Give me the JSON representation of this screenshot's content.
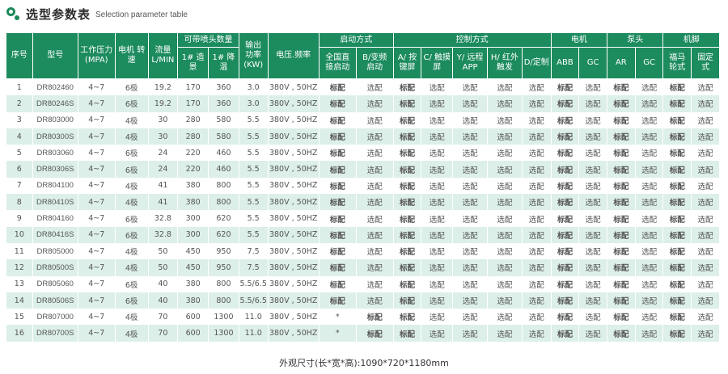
{
  "header": {
    "title_zh": "选型参数表",
    "title_en": "Selection parameter table"
  },
  "table": {
    "headers": {
      "seq": "序号",
      "model": "型号",
      "pressure": "工作压力 (MPA)",
      "motor_speed": "电机 转速",
      "flow": "流量 L/MIN",
      "nozzles": "可带喷头数量",
      "nozzle_normal": "1# 造景",
      "nozzle_cool": "1# 降温",
      "power": "输出 功率 (KW)",
      "voltage": "电压.频率",
      "start_mode": "启动方式",
      "start_a": "全国直 接启动",
      "start_b": "B/变频 启动",
      "control_mode": "控制方式",
      "ctrl_a": "A/ 按键屏",
      "ctrl_c": "C/ 触摸屏",
      "ctrl_y": "Y/ 远程APP",
      "ctrl_h": "H/ 红外触发",
      "ctrl_d": "D/定制",
      "motor": "电机",
      "motor_abb": "ABB",
      "motor_gc": "GC",
      "pump": "泵头",
      "pump_ar": "AR",
      "pump_gc": "GC",
      "base": "机脚",
      "base_fuma": "福马 轮式",
      "base_fixed": "固定 式"
    },
    "rows": [
      {
        "seq": "1",
        "model": "DR802460",
        "pressure": "4~7",
        "speed": "6极",
        "flow": "19.2",
        "n1": "170",
        "n2": "360",
        "power": "3.0",
        "volt": "380V , 50HZ",
        "sa": "标配",
        "sb": "选配",
        "ca": "标配",
        "cc": "选配",
        "cy": "选配",
        "ch": "选配",
        "cd": "选配",
        "ma": "标配",
        "mg": "选配",
        "pa": "标配",
        "pg": "选配",
        "bf": "标配",
        "bx": "选配"
      },
      {
        "seq": "2",
        "model": "DR80246S",
        "pressure": "4~7",
        "speed": "6极",
        "flow": "19.2",
        "n1": "170",
        "n2": "360",
        "power": "3.0",
        "volt": "380V , 50HZ",
        "sa": "标配",
        "sb": "选配",
        "ca": "标配",
        "cc": "选配",
        "cy": "选配",
        "ch": "选配",
        "cd": "选配",
        "ma": "标配",
        "mg": "选配",
        "pa": "标配",
        "pg": "选配",
        "bf": "标配",
        "bx": "选配"
      },
      {
        "seq": "3",
        "model": "DR803000",
        "pressure": "4~7",
        "speed": "4极",
        "flow": "30",
        "n1": "280",
        "n2": "580",
        "power": "5.5",
        "volt": "380V , 50HZ",
        "sa": "标配",
        "sb": "选配",
        "ca": "标配",
        "cc": "选配",
        "cy": "选配",
        "ch": "选配",
        "cd": "选配",
        "ma": "标配",
        "mg": "选配",
        "pa": "标配",
        "pg": "选配",
        "bf": "标配",
        "bx": "选配"
      },
      {
        "seq": "4",
        "model": "DR80300S",
        "pressure": "4~7",
        "speed": "4极",
        "flow": "30",
        "n1": "280",
        "n2": "580",
        "power": "5.5",
        "volt": "380V , 50HZ",
        "sa": "标配",
        "sb": "选配",
        "ca": "标配",
        "cc": "选配",
        "cy": "选配",
        "ch": "选配",
        "cd": "选配",
        "ma": "标配",
        "mg": "选配",
        "pa": "标配",
        "pg": "选配",
        "bf": "标配",
        "bx": "选配"
      },
      {
        "seq": "5",
        "model": "DR803060",
        "pressure": "4~7",
        "speed": "6极",
        "flow": "24",
        "n1": "220",
        "n2": "460",
        "power": "5.5",
        "volt": "380V , 50HZ",
        "sa": "标配",
        "sb": "选配",
        "ca": "标配",
        "cc": "选配",
        "cy": "选配",
        "ch": "选配",
        "cd": "选配",
        "ma": "标配",
        "mg": "选配",
        "pa": "标配",
        "pg": "选配",
        "bf": "标配",
        "bx": "选配"
      },
      {
        "seq": "6",
        "model": "DR80306S",
        "pressure": "4~7",
        "speed": "6极",
        "flow": "24",
        "n1": "220",
        "n2": "460",
        "power": "5.5",
        "volt": "380V , 50HZ",
        "sa": "标配",
        "sb": "选配",
        "ca": "标配",
        "cc": "选配",
        "cy": "选配",
        "ch": "选配",
        "cd": "选配",
        "ma": "标配",
        "mg": "选配",
        "pa": "标配",
        "pg": "选配",
        "bf": "标配",
        "bx": "选配"
      },
      {
        "seq": "7",
        "model": "DR804100",
        "pressure": "4~7",
        "speed": "4极",
        "flow": "41",
        "n1": "380",
        "n2": "800",
        "power": "5.5",
        "volt": "380V , 50HZ",
        "sa": "标配",
        "sb": "选配",
        "ca": "标配",
        "cc": "选配",
        "cy": "选配",
        "ch": "选配",
        "cd": "选配",
        "ma": "标配",
        "mg": "选配",
        "pa": "标配",
        "pg": "选配",
        "bf": "标配",
        "bx": "选配"
      },
      {
        "seq": "8",
        "model": "DR80410S",
        "pressure": "4~7",
        "speed": "4极",
        "flow": "41",
        "n1": "380",
        "n2": "800",
        "power": "5.5",
        "volt": "380V , 50HZ",
        "sa": "标配",
        "sb": "选配",
        "ca": "标配",
        "cc": "选配",
        "cy": "选配",
        "ch": "选配",
        "cd": "选配",
        "ma": "标配",
        "mg": "选配",
        "pa": "标配",
        "pg": "选配",
        "bf": "标配",
        "bx": "选配"
      },
      {
        "seq": "9",
        "model": "DR804160",
        "pressure": "4~7",
        "speed": "6极",
        "flow": "32.8",
        "n1": "300",
        "n2": "620",
        "power": "5.5",
        "volt": "380V , 50HZ",
        "sa": "标配",
        "sb": "选配",
        "ca": "标配",
        "cc": "选配",
        "cy": "选配",
        "ch": "选配",
        "cd": "选配",
        "ma": "标配",
        "mg": "选配",
        "pa": "标配",
        "pg": "选配",
        "bf": "标配",
        "bx": "选配"
      },
      {
        "seq": "10",
        "model": "DR80416S",
        "pressure": "4~7",
        "speed": "6极",
        "flow": "32.8",
        "n1": "300",
        "n2": "620",
        "power": "5.5",
        "volt": "380V , 50HZ",
        "sa": "标配",
        "sb": "选配",
        "ca": "标配",
        "cc": "选配",
        "cy": "选配",
        "ch": "选配",
        "cd": "选配",
        "ma": "标配",
        "mg": "选配",
        "pa": "标配",
        "pg": "选配",
        "bf": "标配",
        "bx": "选配"
      },
      {
        "seq": "11",
        "model": "DR805000",
        "pressure": "4~7",
        "speed": "4极",
        "flow": "50",
        "n1": "450",
        "n2": "950",
        "power": "7.5",
        "volt": "380V , 50HZ",
        "sa": "标配",
        "sb": "选配",
        "ca": "标配",
        "cc": "选配",
        "cy": "选配",
        "ch": "选配",
        "cd": "选配",
        "ma": "标配",
        "mg": "选配",
        "pa": "标配",
        "pg": "选配",
        "bf": "标配",
        "bx": "选配"
      },
      {
        "seq": "12",
        "model": "DR80500S",
        "pressure": "4~7",
        "speed": "4极",
        "flow": "50",
        "n1": "450",
        "n2": "950",
        "power": "7.5",
        "volt": "380V , 50HZ",
        "sa": "标配",
        "sb": "选配",
        "ca": "标配",
        "cc": "选配",
        "cy": "选配",
        "ch": "选配",
        "cd": "选配",
        "ma": "标配",
        "mg": "选配",
        "pa": "标配",
        "pg": "选配",
        "bf": "标配",
        "bx": "选配"
      },
      {
        "seq": "13",
        "model": "DR805060",
        "pressure": "4~7",
        "speed": "6极",
        "flow": "40",
        "n1": "380",
        "n2": "800",
        "power": "5.5/6.5",
        "volt": "380V , 50HZ",
        "sa": "标配",
        "sb": "选配",
        "ca": "标配",
        "cc": "选配",
        "cy": "选配",
        "ch": "选配",
        "cd": "选配",
        "ma": "标配",
        "mg": "选配",
        "pa": "标配",
        "pg": "选配",
        "bf": "标配",
        "bx": "选配"
      },
      {
        "seq": "14",
        "model": "DR80506S",
        "pressure": "4~7",
        "speed": "6极",
        "flow": "40",
        "n1": "380",
        "n2": "800",
        "power": "5.5/6.5",
        "volt": "380V , 50HZ",
        "sa": "标配",
        "sb": "选配",
        "ca": "标配",
        "cc": "选配",
        "cy": "选配",
        "ch": "选配",
        "cd": "选配",
        "ma": "标配",
        "mg": "选配",
        "pa": "标配",
        "pg": "选配",
        "bf": "标配",
        "bx": "选配"
      },
      {
        "seq": "15",
        "model": "DR807000",
        "pressure": "4~7",
        "speed": "4极",
        "flow": "70",
        "n1": "600",
        "n2": "1300",
        "power": "11.0",
        "volt": "380V , 50HZ",
        "sa": "*",
        "sb": "标配",
        "ca": "标配",
        "cc": "选配",
        "cy": "选配",
        "ch": "选配",
        "cd": "选配",
        "ma": "标配",
        "mg": "选配",
        "pa": "标配",
        "pg": "选配",
        "bf": "标配",
        "bx": "选配"
      },
      {
        "seq": "16",
        "model": "DR80700S",
        "pressure": "4~7",
        "speed": "4极",
        "flow": "70",
        "n1": "600",
        "n2": "1300",
        "power": "11.0",
        "volt": "380V , 50HZ",
        "sa": "*",
        "sb": "标配",
        "ca": "标配",
        "cc": "选配",
        "cy": "选配",
        "ch": "选配",
        "cd": "选配",
        "ma": "标配",
        "mg": "选配",
        "pa": "标配",
        "pg": "选配",
        "bf": "标配",
        "bx": "选配"
      }
    ]
  },
  "footer": {
    "dimensions": "外观尺寸(长*宽*高):1090*720*1180mm"
  },
  "colors": {
    "header_bg": "#1c8b5e",
    "stripe": "#dcefe8",
    "standard_red": "#e02b2b"
  }
}
